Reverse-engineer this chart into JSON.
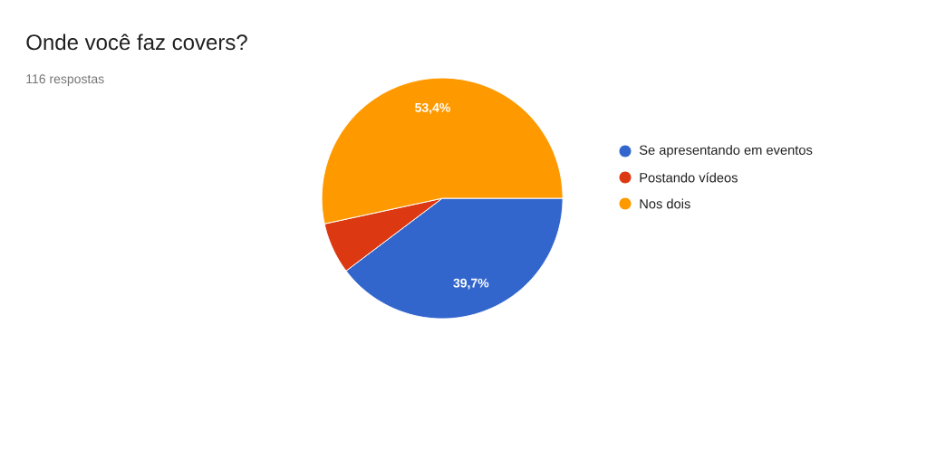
{
  "chart_data": {
    "type": "pie",
    "title": "Onde você faz covers?",
    "subtitle": "116 respostas",
    "categories": [
      "Se apresentando em eventos",
      "Postando vídeos",
      "Nos dois"
    ],
    "values": [
      39.7,
      6.9,
      53.4
    ],
    "colors": [
      "#3366cc",
      "#dc3912",
      "#ff9900"
    ],
    "value_labels": [
      "39,7%",
      null,
      "53,4%"
    ],
    "legend": "right"
  }
}
